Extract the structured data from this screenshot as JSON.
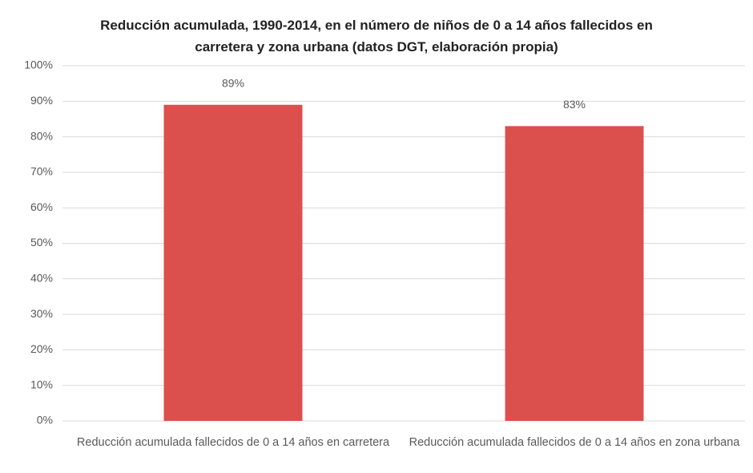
{
  "chart_data": {
    "type": "bar",
    "title": "Reducción acumulada, 1990-2014, en el número de niños de 0 a 14 años fallecidos en carretera y zona urbana (datos DGT, elaboración propia)",
    "categories": [
      "Reducción acumulada fallecidos de 0 a 14 años en carretera",
      "Reducción acumulada fallecidos de 0 a 14 años en zona urbana"
    ],
    "values": [
      89,
      83
    ],
    "value_labels": [
      "89%",
      "83%"
    ],
    "color": "#db4f4d",
    "ylim": [
      0,
      100
    ],
    "yticks": [
      {
        "value": 0,
        "label": "0%"
      },
      {
        "value": 10,
        "label": "10%"
      },
      {
        "value": 20,
        "label": "20%"
      },
      {
        "value": 30,
        "label": "30%"
      },
      {
        "value": 40,
        "label": "40%"
      },
      {
        "value": 50,
        "label": "50%"
      },
      {
        "value": 60,
        "label": "60%"
      },
      {
        "value": 70,
        "label": "70%"
      },
      {
        "value": 80,
        "label": "80%"
      },
      {
        "value": 90,
        "label": "90%"
      },
      {
        "value": 100,
        "label": "100%"
      }
    ],
    "grid": true
  }
}
